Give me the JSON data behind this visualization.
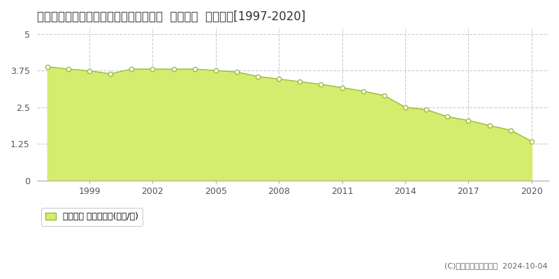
{
  "title": "北海道古平郡古平町大字浜町２９８番４  基準地価  地価推移[1997-2020]",
  "years": [
    1997,
    1998,
    1999,
    2000,
    2001,
    2002,
    2003,
    2004,
    2005,
    2006,
    2007,
    2008,
    2009,
    2010,
    2011,
    2012,
    2013,
    2014,
    2015,
    2016,
    2017,
    2018,
    2019,
    2020
  ],
  "values": [
    3.88,
    3.8,
    3.74,
    3.64,
    3.8,
    3.8,
    3.8,
    3.8,
    3.75,
    3.7,
    3.55,
    3.46,
    3.37,
    3.28,
    3.17,
    3.05,
    2.9,
    2.5,
    2.42,
    2.18,
    2.05,
    1.88,
    1.72,
    1.34
  ],
  "fill_color": "#d4ed6e",
  "line_color": "#9bba3c",
  "marker_facecolor": "#ffffff",
  "marker_edgecolor": "#9bba3c",
  "background_color": "#ffffff",
  "grid_color": "#cccccc",
  "yticks": [
    0,
    1.25,
    2.5,
    3.75,
    5
  ],
  "ylim": [
    0,
    5.2
  ],
  "xlim": [
    1996.5,
    2020.8
  ],
  "xticks": [
    1999,
    2002,
    2005,
    2008,
    2011,
    2014,
    2017,
    2020
  ],
  "legend_label": "基準地価 平均坪単価(万円/坪)",
  "copyright": "(C)土地価格ドットコム  2024-10-04",
  "title_fontsize": 12,
  "legend_fontsize": 9,
  "tick_fontsize": 9,
  "copyright_fontsize": 8,
  "title_color": "#333333",
  "tick_color": "#555555",
  "copyright_color": "#666666",
  "spine_bottom_color": "#aaaaaa"
}
